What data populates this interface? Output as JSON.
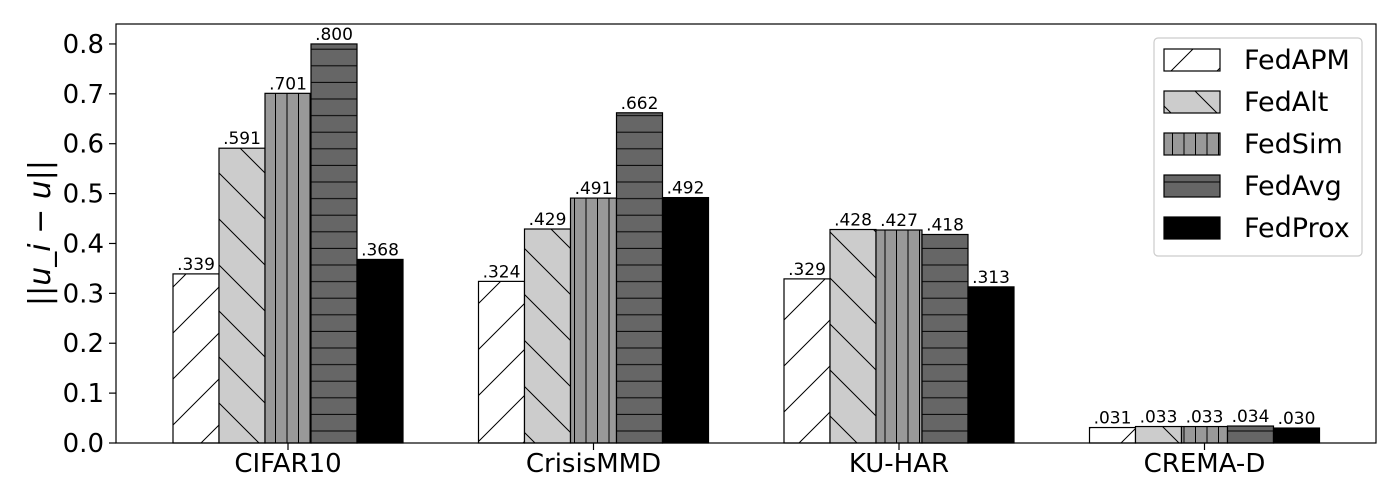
{
  "chart_data": {
    "type": "bar",
    "categories": [
      "CIFAR10",
      "CrisisMMD",
      "KU-HAR",
      "CREMA-D"
    ],
    "series": [
      {
        "name": "FedAPM",
        "values": [
          0.339,
          0.324,
          0.329,
          0.031
        ],
        "labels": [
          ".339",
          ".324",
          ".329",
          ".031"
        ],
        "color": "#ffffff",
        "hatch": "forward-diagonal"
      },
      {
        "name": "FedAlt",
        "values": [
          0.591,
          0.429,
          0.428,
          0.033
        ],
        "labels": [
          ".591",
          ".429",
          ".428",
          ".033"
        ],
        "color": "#cccccc",
        "hatch": "back-diagonal"
      },
      {
        "name": "FedSim",
        "values": [
          0.701,
          0.491,
          0.427,
          0.033
        ],
        "labels": [
          ".701",
          ".491",
          ".427",
          ".033"
        ],
        "color": "#999999",
        "hatch": "vertical"
      },
      {
        "name": "FedAvg",
        "values": [
          0.8,
          0.662,
          0.418,
          0.034
        ],
        "labels": [
          ".800",
          ".662",
          ".418",
          ".034"
        ],
        "color": "#666666",
        "hatch": "horizontal"
      },
      {
        "name": "FedProx",
        "values": [
          0.368,
          0.492,
          0.313,
          0.03
        ],
        "labels": [
          ".368",
          ".492",
          ".313",
          ".030"
        ],
        "color": "#000000",
        "hatch": "none"
      }
    ],
    "title": "",
    "xlabel": "",
    "ylabel": "||u_i − u||",
    "ylim": [
      0,
      0.84
    ],
    "yticks": [
      "0.0",
      "0.1",
      "0.2",
      "0.3",
      "0.4",
      "0.5",
      "0.6",
      "0.7",
      "0.8"
    ],
    "grid": false,
    "legend_position": "top-right"
  }
}
